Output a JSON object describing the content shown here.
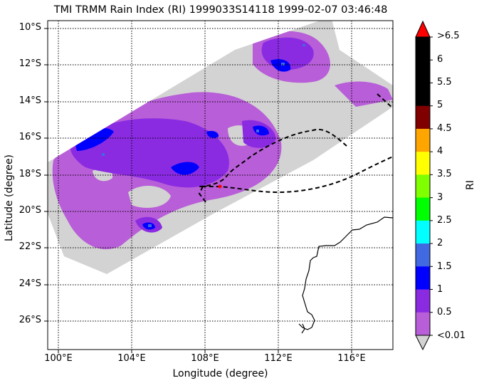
{
  "title": "TMI TRMM Rain Index (RI) 1999033S14118 1999-02-07 03:46:48",
  "x_axis": {
    "label": "Longitude (degree)",
    "ticks": [
      "100°E",
      "104°E",
      "108°E",
      "112°E",
      "116°E"
    ]
  },
  "y_axis": {
    "label": "Latitude (degree)",
    "ticks": [
      "10°S",
      "12°S",
      "14°S",
      "16°S",
      "18°S",
      "20°S",
      "22°S",
      "24°S",
      "26°S"
    ]
  },
  "colorbar": {
    "label": "RI",
    "tick_labels": [
      ">6.5",
      "6",
      "5.5",
      "5",
      "4.5",
      "4",
      "3.5",
      "3",
      "2.5",
      "2",
      "1.5",
      "1",
      "0.5",
      "<0.01"
    ],
    "colors": [
      "#000000",
      "#000000",
      "#000000",
      "#800000",
      "#ffa500",
      "#ffff00",
      "#7fff00",
      "#00ff00",
      "#00ffff",
      "#4169e1",
      "#0000ff",
      "#8a2be2",
      "#b85ed8"
    ],
    "over_color": "#ff0000",
    "under_color": "#d3d3d3"
  },
  "colors": {
    "swath_background": "#d3d3d3",
    "rain_light": "#b85ed8",
    "rain_moderate": "#8a2be2",
    "rain_heavy": "#0000ff",
    "rain_peak": "#4169e1",
    "track": "#000000",
    "storm_center": "#ff0000"
  }
}
